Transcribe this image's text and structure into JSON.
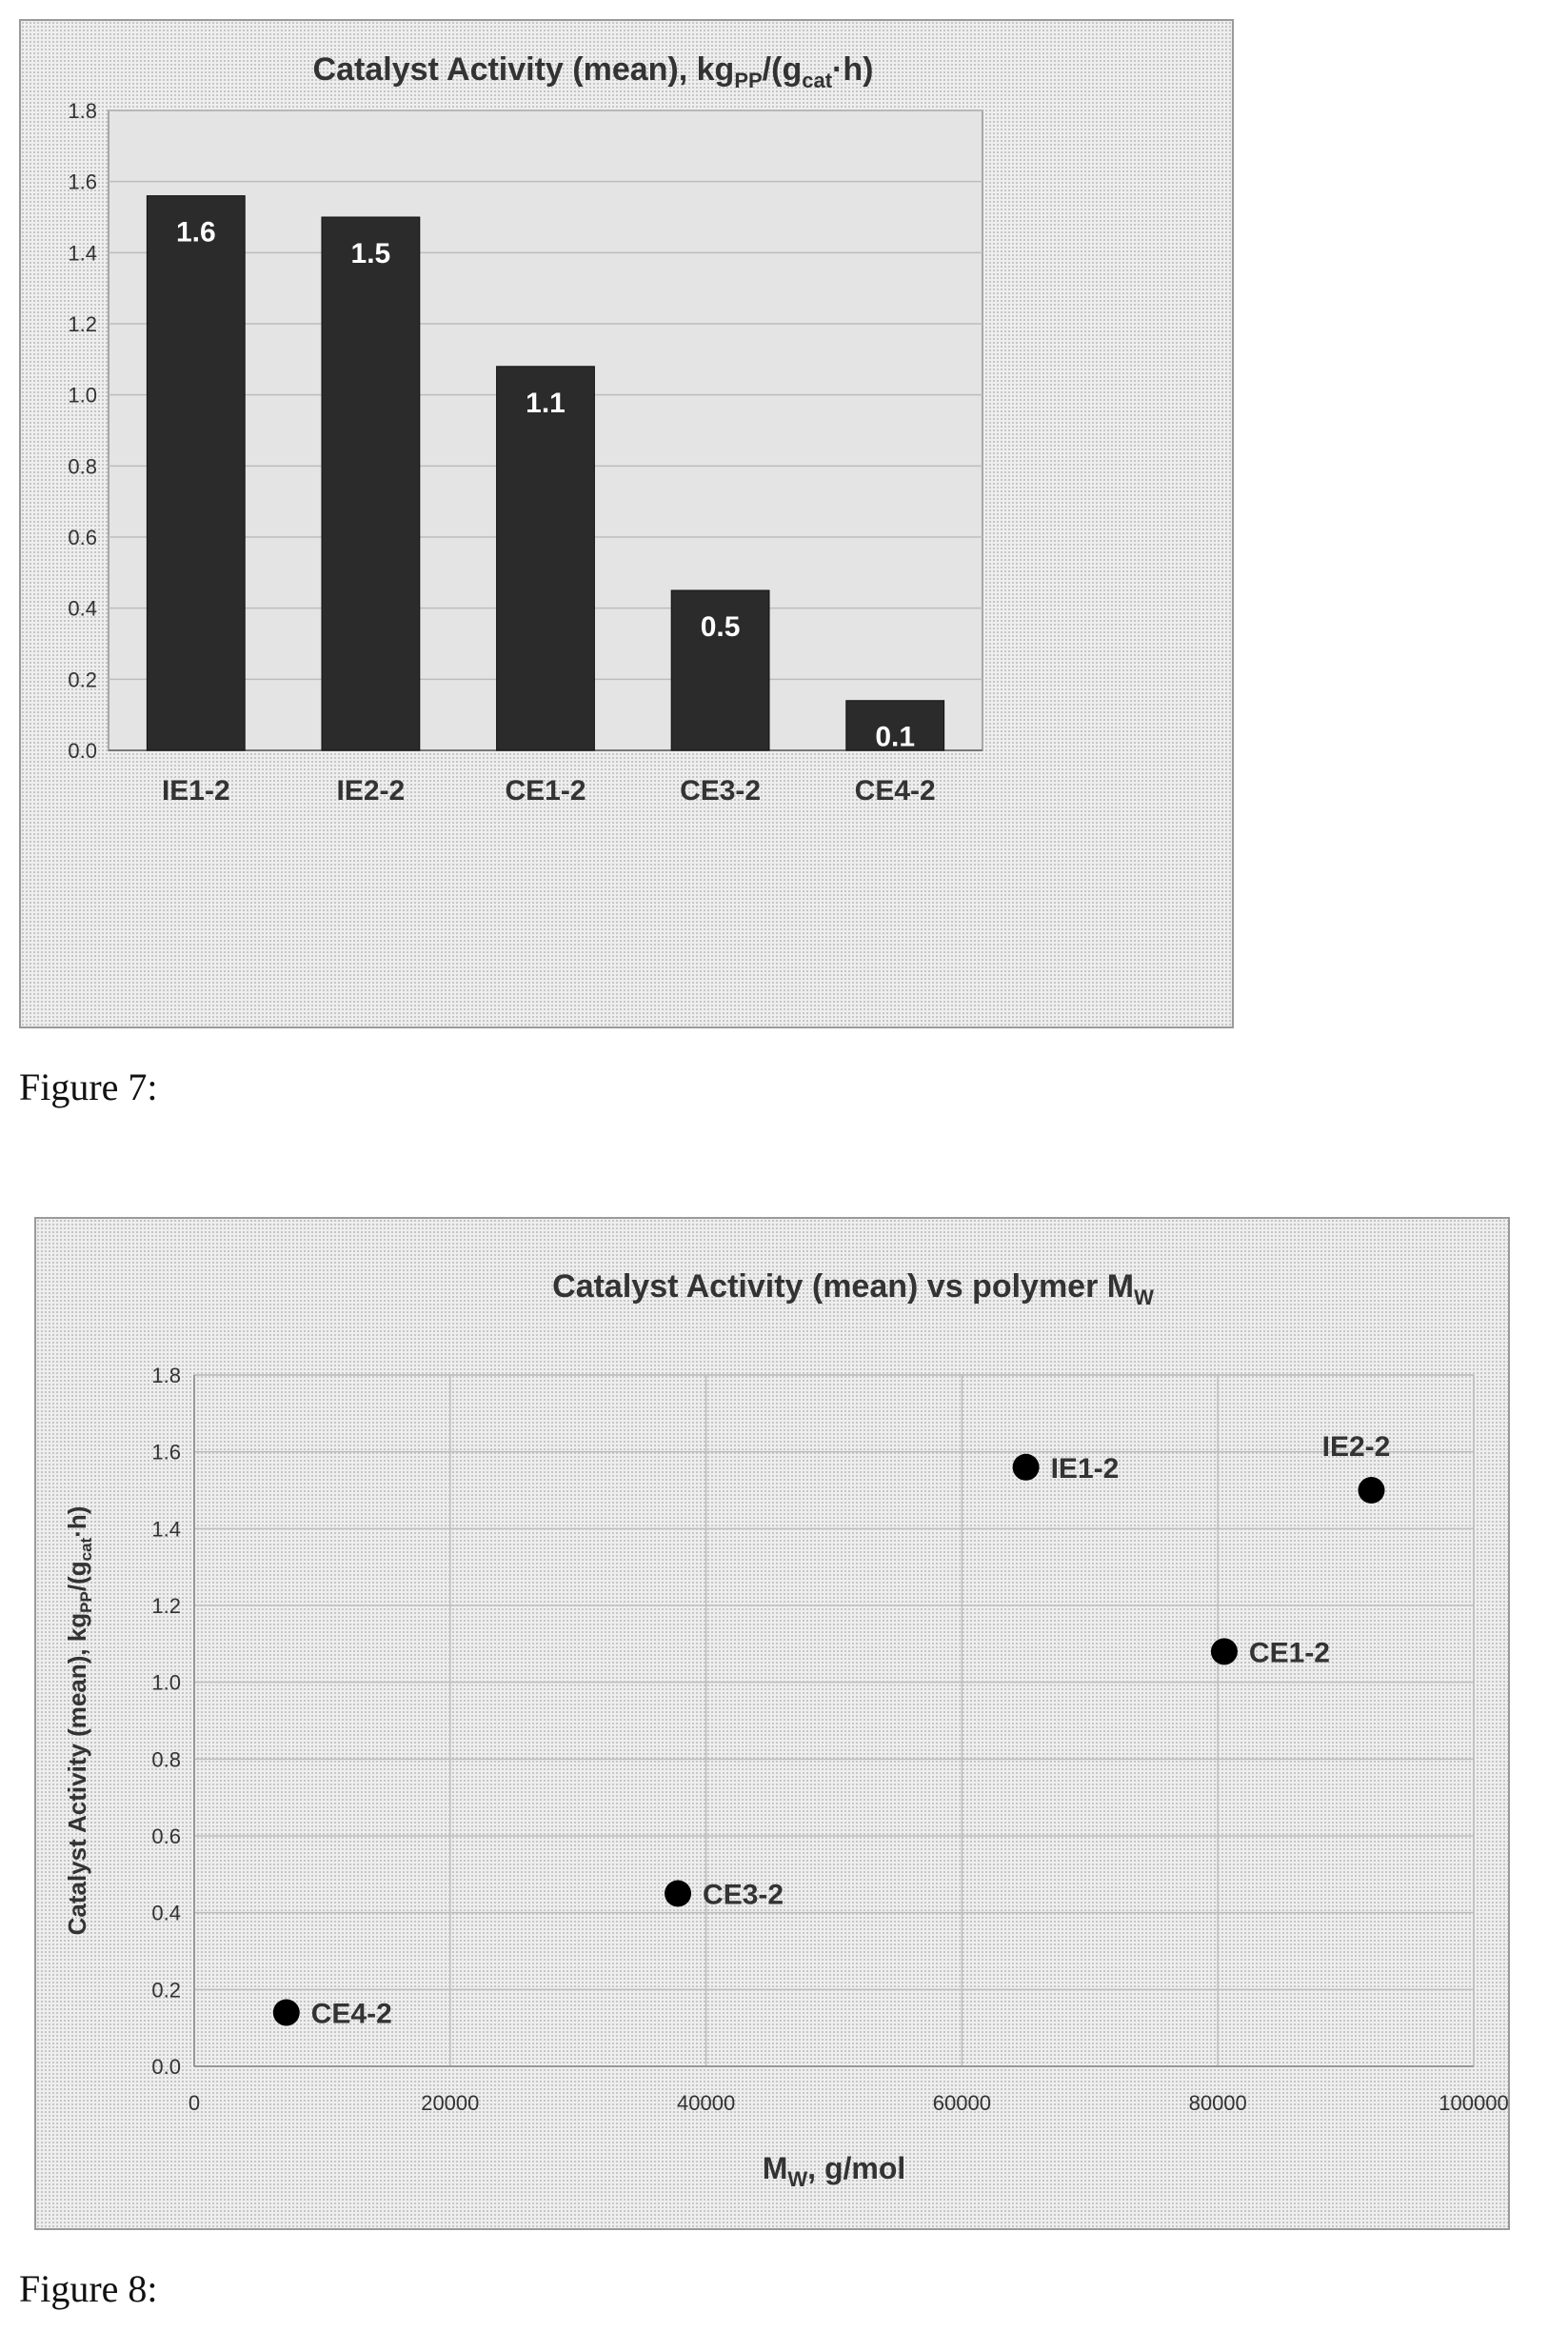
{
  "figures": [
    {
      "caption": "Figure 7:",
      "chart_data": {
        "type": "bar",
        "title": {
          "main": "Catalyst Activity (mean), kg",
          "sub1": "PP",
          "mid": "/(g",
          "sub2": "cat",
          "end": "·h)"
        },
        "categories": [
          "IE1-2",
          "IE2-2",
          "CE1-2",
          "CE3-2",
          "CE4-2"
        ],
        "values": [
          1.56,
          1.5,
          1.08,
          0.45,
          0.14
        ],
        "data_labels": [
          "1.6",
          "1.5",
          "1.1",
          "0.5",
          "0.1"
        ],
        "ylim": [
          0,
          1.8
        ],
        "yticks": [
          "0.0",
          "0.2",
          "0.4",
          "0.6",
          "0.8",
          "1.0",
          "1.2",
          "1.4",
          "1.6",
          "1.8"
        ],
        "grid": true,
        "bar_color": "#2b2b2b"
      }
    },
    {
      "caption": "Figure 8:",
      "chart_data": {
        "type": "scatter",
        "title": {
          "main": "Catalyst Activity (mean) vs polymer M",
          "sub": "W"
        },
        "xlabel": {
          "main": "M",
          "sub": "W",
          "end": ", g/mol"
        },
        "ylabel": {
          "main": "Catalyst Activity (mean), kg",
          "sub1": "PP",
          "mid": "/(g",
          "sub2": "cat",
          "end": "·h)"
        },
        "xlim": [
          0,
          100000
        ],
        "ylim": [
          0,
          1.8
        ],
        "xticks": [
          "0",
          "20000",
          "40000",
          "60000",
          "80000",
          "100000"
        ],
        "yticks": [
          "0.0",
          "0.2",
          "0.4",
          "0.6",
          "0.8",
          "1.0",
          "1.2",
          "1.4",
          "1.6",
          "1.8"
        ],
        "grid": true,
        "points": [
          {
            "label": "IE1-2",
            "x": 65000,
            "y": 1.56
          },
          {
            "label": "IE2-2",
            "x": 92000,
            "y": 1.5
          },
          {
            "label": "CE1-2",
            "x": 80500,
            "y": 1.08
          },
          {
            "label": "CE3-2",
            "x": 37800,
            "y": 0.45
          },
          {
            "label": "CE4-2",
            "x": 7200,
            "y": 0.14
          }
        ],
        "marker_color": "#000000"
      }
    }
  ]
}
